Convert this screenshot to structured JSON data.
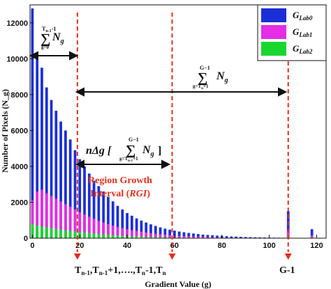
{
  "chart_data": {
    "type": "bar",
    "xlabel": "Gradient Value (g)",
    "ylabel": "Number of Pixels (N_g)",
    "xlim": [
      -1,
      124
    ],
    "ylim": [
      0,
      13000
    ],
    "xticks": [
      "0",
      "20",
      "40",
      "60",
      "80",
      "100",
      "120"
    ],
    "yticks": [
      "0",
      "2000",
      "4000",
      "6000",
      "8000",
      "10000",
      "12000"
    ],
    "legend_position": "top-right",
    "series": [
      {
        "name": "G_Lab0",
        "color": "#1a2fd6"
      },
      {
        "name": "G_Lab1",
        "color": "#e42de4"
      },
      {
        "name": "G_Lab2",
        "color": "#19d62f"
      }
    ],
    "x": [
      0,
      2,
      4,
      6,
      8,
      10,
      12,
      14,
      16,
      18,
      20,
      22,
      24,
      26,
      28,
      30,
      32,
      34,
      36,
      38,
      40,
      42,
      44,
      46,
      48,
      50,
      52,
      54,
      56,
      58,
      60,
      62,
      64,
      66,
      68,
      70,
      72,
      74,
      76,
      78,
      80,
      82,
      84,
      86,
      88,
      90,
      92,
      94,
      96,
      98,
      100,
      102,
      104,
      106,
      108,
      110,
      112,
      114,
      116,
      118,
      120
    ],
    "values_lab0": [
      12800,
      10100,
      9500,
      8400,
      7700,
      7100,
      6500,
      6000,
      5500,
      4900,
      4400,
      4000,
      3600,
      3200,
      2900,
      2600,
      2300,
      2050,
      1800,
      1600,
      1400,
      1250,
      1100,
      980,
      870,
      770,
      680,
      600,
      530,
      470,
      420,
      370,
      330,
      290,
      260,
      230,
      200,
      180,
      160,
      140,
      125,
      110,
      95,
      85,
      75,
      65,
      58,
      50,
      44,
      38,
      33,
      28,
      25,
      22,
      1500,
      18,
      15,
      12,
      10,
      500,
      8
    ],
    "values_lab1": [
      2100,
      2600,
      2700,
      2500,
      2350,
      2200,
      2050,
      1900,
      1750,
      1600,
      1450,
      1320,
      1200,
      1080,
      970,
      870,
      780,
      700,
      630,
      560,
      500,
      450,
      400,
      360,
      320,
      280,
      250,
      220,
      195,
      170,
      150,
      130,
      115,
      100,
      88,
      77,
      67,
      58,
      50,
      43,
      37,
      32,
      28,
      24,
      21,
      18,
      15,
      13,
      11,
      9,
      8,
      7,
      6,
      5,
      400,
      4,
      3,
      3,
      2,
      150,
      2
    ],
    "values_lab2": [
      800,
      700,
      650,
      600,
      560,
      520,
      480,
      440,
      410,
      380,
      350,
      320,
      290,
      260,
      235,
      210,
      190,
      170,
      155,
      140,
      125,
      110,
      98,
      87,
      77,
      68,
      60,
      53,
      47,
      41,
      36,
      32,
      28,
      25,
      22,
      19,
      17,
      15,
      13,
      11,
      10,
      9,
      8,
      7,
      6,
      5,
      4,
      4,
      3,
      3,
      2,
      2,
      2,
      1,
      120,
      1,
      1,
      1,
      1,
      40,
      1
    ],
    "annotations": {
      "sum_left_top": "T",
      "sum_left_top_sub": "n-1",
      "sum_left_top_tail": "-1",
      "sum_left_sigma": "∑",
      "sum_left_bottom": "g=0",
      "sum_left_term": "N",
      "sum_left_term_sub": "g",
      "sum_right_top": "G−1",
      "sum_right_sigma": "∑",
      "sum_right_bottom": "g=T",
      "sum_right_bottom_sub": "n",
      "sum_right_bottom_tail": "+1",
      "sum_right_term": "N",
      "sum_right_term_sub": "g",
      "rgi_prefix": "nΔg [",
      "rgi_top": "G−1",
      "rgi_sigma": "∑",
      "rgi_bottom": "g=T",
      "rgi_bottom_sub": "n-1",
      "rgi_bottom_tail": "+1",
      "rgi_term": "N",
      "rgi_term_sub": "g",
      "rgi_suffix": "]",
      "region_line1": "Region Growth",
      "region_line2a": "Interval (",
      "region_line2b": "RGI",
      "region_line2c": ")",
      "bottom_sequence": "T",
      "seq_1": "n-1",
      "seq_2": ",T",
      "seq_3": "n-1",
      "seq_4": "+1,….,T",
      "seq_5": "n",
      "seq_6": "-1,T",
      "seq_7": "n",
      "g_minus_1": "G-1"
    },
    "marker_lines": [
      19,
      59,
      108
    ]
  }
}
